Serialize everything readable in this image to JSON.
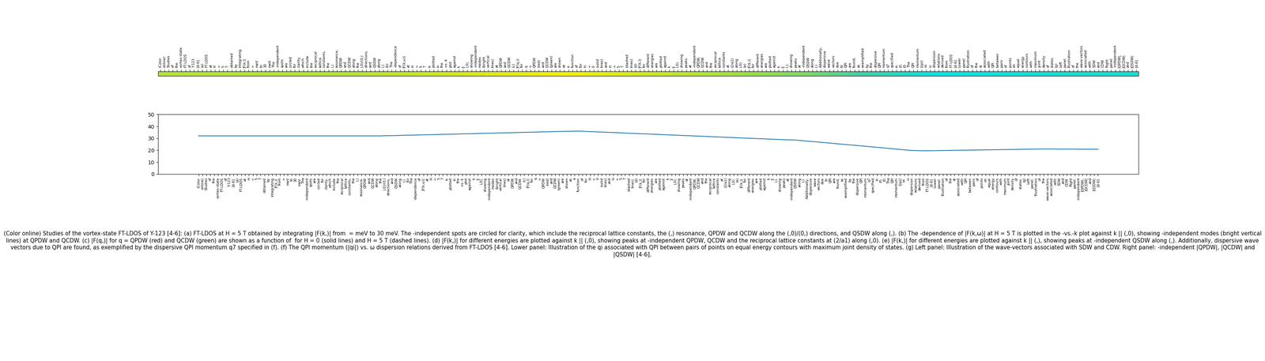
{
  "chart_data": {
    "type": "line",
    "color": "#1f77b4",
    "categories": [
      "(Color",
      "online)",
      "Studies",
      "of",
      "the",
      "vortex-state",
      "FT-LDOS",
      "of",
      "Y-123",
      "[4-6]:",
      "(a)",
      "FT-LDOS",
      "at",
      "H",
      "=",
      "5",
      "T",
      "obtained",
      "by",
      "integrating",
      "|F(k,)|",
      "from",
      "=",
      "meV",
      "to",
      "30",
      "meV.",
      "The",
      "-independent",
      "spots",
      "are",
      "circled",
      "for",
      "clarity,",
      "which",
      "include",
      "the",
      "reciprocal",
      "lattice",
      "constants,",
      "the",
      "(,)",
      "resonance,",
      "QPDW",
      "and",
      "QCDW",
      "along",
      "the",
      "(,0)/(0,)",
      "directions,",
      "and",
      "QSDW",
      "along",
      "(,).",
      "(b)",
      "The",
      "-dependence",
      "of",
      "|F(k,ω)|",
      "at",
      "H",
      "=",
      "5",
      "T",
      "is",
      "plotted",
      "in",
      "the",
      "-vs.-k",
      "plot",
      "against",
      "k",
      "||",
      "(,0),",
      "showing",
      "-independent",
      "modes",
      "(bright",
      "vertical",
      "lines)",
      "at",
      "QPDW",
      "and",
      "QCDW.",
      "(c)",
      "|F(q,)|",
      "for",
      "q",
      "=",
      "QPDW",
      "(red)",
      "and",
      "QCDW",
      "(green)",
      "are",
      "shown",
      "as",
      "a",
      "function",
      "of",
      "for",
      "H",
      "=",
      "0",
      "(solid",
      "lines)",
      "and",
      "H",
      "=",
      "5",
      "T",
      "(dashed",
      "lines).",
      "(d)",
      "|F(k,)|",
      "for",
      "different",
      "energies",
      "are",
      "plotted",
      "against",
      "k",
      "||",
      "(,0),",
      "showing",
      "peaks",
      "at",
      "-independent",
      "QPDW,",
      "QCDW",
      "and",
      "the",
      "reciprocal",
      "lattice",
      "constants",
      "at",
      "(2/a1)",
      "along",
      "(,0).",
      "(e)",
      "|F(k,)|",
      "for",
      "different",
      "energies",
      "are",
      "plotted",
      "against",
      "k",
      "||",
      "(,),",
      "showing",
      "peaks",
      "at",
      "-independent",
      "QSDW",
      "along",
      "(,).",
      "Additionally,",
      "dispersive",
      "wave",
      "vectors",
      "due",
      "to",
      "QPI",
      "are",
      "found,",
      "as",
      "exemplified",
      "by",
      "the",
      "dispersive",
      "QPI",
      "momentum",
      "q7",
      "specified",
      "in",
      "(f).",
      "(f)",
      "The",
      "QPI",
      "momentum",
      "(|qi|)",
      "vs.",
      "ω",
      "dispersion",
      "relations",
      "derived",
      "from",
      "FT-LDOS",
      "[4-6].",
      "Lower",
      "panel:",
      "Illustration",
      "of",
      "the",
      "qi",
      "associated",
      "with",
      "QPI",
      "between",
      "pairs",
      "of",
      "points",
      "on",
      "equal",
      "energy",
      "contours",
      "with",
      "maximum",
      "joint",
      "density",
      "of",
      "states.",
      "(g)",
      "Left",
      "panel:",
      "Illustration",
      "of",
      "the",
      "wave-vectors",
      "associated",
      "with",
      "SDW",
      "and",
      "CDW.",
      "Right",
      "panel:",
      "-independent",
      "|QPDW|,",
      "|QCDW|",
      "and",
      "|QSDW|",
      "[4-6]."
    ],
    "values": [
      32.0,
      32.0,
      32.0,
      32.0,
      32.0,
      32.0,
      32.0,
      32.0,
      32.0,
      32.0,
      32.0,
      32.0,
      32.0,
      32.0,
      32.0,
      32.0,
      32.0,
      32.0,
      32.0,
      32.0,
      32.0,
      32.0,
      32.0,
      32.0,
      32.0,
      32.0,
      32.0,
      32.0,
      32.0,
      32.0,
      32.0,
      32.0,
      32.0,
      32.0,
      32.0,
      32.0,
      32.0,
      32.0,
      32.0,
      32.0,
      32.0,
      32.0,
      32.0,
      32.0,
      32.0,
      32.0,
      32.0,
      32.0,
      32.1,
      32.2,
      32.2,
      32.3,
      32.4,
      32.5,
      32.6,
      32.6,
      32.7,
      32.8,
      32.9,
      33.0,
      33.0,
      33.1,
      33.2,
      33.3,
      33.4,
      33.4,
      33.5,
      33.6,
      33.7,
      33.8,
      33.8,
      33.9,
      34.0,
      34.1,
      34.2,
      34.2,
      34.3,
      34.4,
      34.5,
      34.6,
      34.6,
      34.7,
      34.8,
      34.9,
      35.0,
      35.0,
      35.1,
      35.2,
      35.3,
      35.4,
      35.4,
      35.5,
      35.6,
      35.7,
      35.8,
      35.8,
      35.9,
      36.0,
      36.0,
      35.9,
      35.7,
      35.6,
      35.5,
      35.3,
      35.2,
      35.1,
      34.9,
      34.8,
      34.7,
      34.5,
      34.4,
      34.2,
      34.1,
      34.0,
      33.8,
      33.7,
      33.6,
      33.4,
      33.3,
      33.2,
      33.0,
      32.9,
      32.7,
      32.6,
      32.5,
      32.3,
      32.2,
      32.1,
      31.9,
      31.8,
      31.7,
      31.5,
      31.4,
      31.2,
      31.1,
      31.0,
      30.8,
      30.7,
      30.6,
      30.4,
      30.3,
      30.1,
      30.0,
      29.9,
      29.7,
      29.6,
      29.5,
      29.3,
      29.2,
      29.1,
      28.9,
      28.8,
      28.7,
      28.6,
      28.5,
      28.2,
      27.9,
      27.6,
      27.3,
      27.1,
      26.8,
      26.5,
      26.2,
      25.9,
      25.6,
      25.3,
      25.0,
      24.7,
      24.4,
      24.2,
      23.9,
      23.6,
      23.3,
      23.0,
      22.7,
      22.4,
      22.1,
      21.8,
      21.5,
      21.2,
      20.9,
      20.6,
      20.3,
      20.0,
      19.8,
      19.7,
      19.6,
      19.5,
      19.5,
      19.6,
      19.6,
      19.7,
      19.7,
      19.8,
      19.8,
      19.9,
      19.9,
      20.0,
      20.0,
      20.1,
      20.1,
      20.2,
      20.2,
      20.3,
      20.3,
      20.4,
      20.4,
      20.5,
      20.5,
      20.6,
      20.6,
      20.7,
      20.7,
      20.8,
      20.8,
      20.9,
      20.9,
      21.0,
      21.0,
      21.0,
      21.0,
      21.0,
      20.9,
      20.9,
      20.9,
      20.9,
      20.9,
      20.8,
      20.8,
      20.8,
      20.8,
      20.8,
      20.8
    ],
    "ylim": [
      0,
      50
    ],
    "yticks": [
      0,
      10,
      20,
      30,
      40,
      50
    ]
  },
  "caption": "(Color online) Studies of the vortex-state FT-LDOS of Y-123 [4-6]: (a) FT-LDOS at H = 5 T obtained by integrating |F(k,)| from  = meV to 30 meV. The -independent spots are circled for clarity, which include the reciprocal lattice constants, the (,) resonance, QPDW and QCDW along the (,0)/(0,) directions, and QSDW along (,). (b) The -dependence of |F(k,ω)| at H = 5 T is plotted in the -vs.-k plot against k || (,0), showing -independent modes (bright vertical lines) at QPDW and QCDW. (c) |F(q,)| for q = QPDW (red) and QCDW (green) are shown as a function of  for H = 0 (solid lines) and H = 5 T (dashed lines). (d) |F(k,)| for different energies are plotted against k || (,0), showing peaks at -independent QPDW, QCDW and the reciprocal lattice constants at (2/a1) along (,0). (e) |F(k,)| for different energies are plotted against k || (,), showing peaks at -independent QSDW along (,). Additionally, dispersive wave vectors due to QPI are found, as exemplified by the dispersive QPI momentum q7 specified in (f). (f) The QPI momentum (|qi|) vs. ω dispersion relations derived from FT-LDOS [4-6]. Lower panel: Illustration of the qi associated with QPI between pairs of points on equal energy contours with maximum joint density of states. (g) Left panel: Illustration of the wave-vectors associated with SDW and CDW. Right panel: -independent |QPDW|, |QCDW| and |QSDW| [4-6]."
}
